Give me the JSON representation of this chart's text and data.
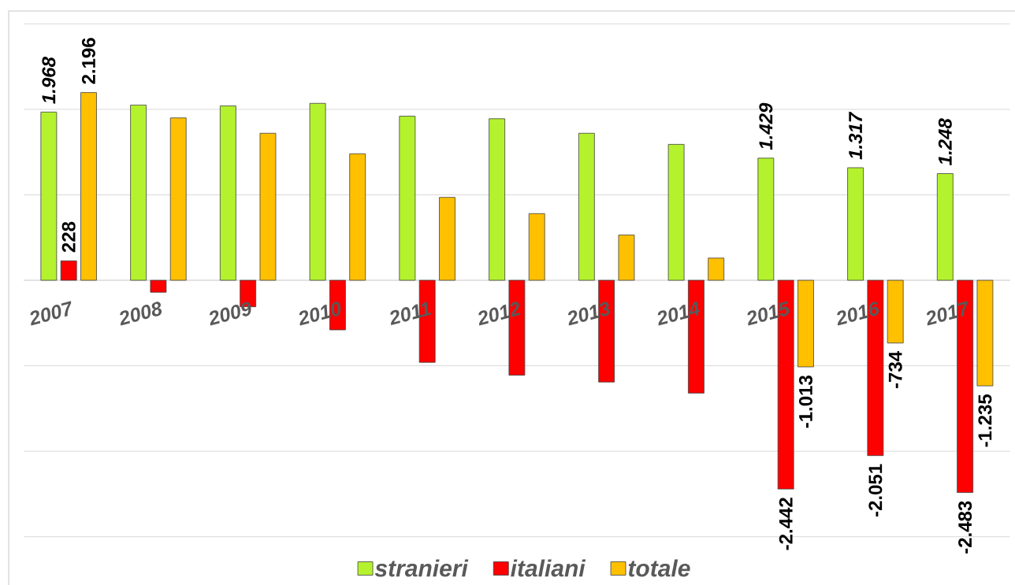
{
  "chart_data": {
    "type": "bar",
    "categories": [
      "2007",
      "2008",
      "2009",
      "2010",
      "2011",
      "2012",
      "2013",
      "2014",
      "2015",
      "2016",
      "2017"
    ],
    "series": [
      {
        "name": "stranieri",
        "color": "#b4f22e",
        "values": [
          1968,
          2050,
          2040,
          2070,
          1920,
          1890,
          1720,
          1590,
          1429,
          1317,
          1248
        ],
        "value_labels": [
          "1.968",
          null,
          null,
          null,
          null,
          null,
          null,
          null,
          "1.429",
          "1.317",
          "1.248"
        ]
      },
      {
        "name": "italiani",
        "color": "#ff0000",
        "values": [
          228,
          -140,
          -310,
          -580,
          -960,
          -1110,
          -1190,
          -1320,
          -2442,
          -2051,
          -2483
        ],
        "value_labels": [
          "228",
          null,
          null,
          null,
          null,
          null,
          null,
          null,
          "-2.442",
          "-2.051",
          "-2.483"
        ]
      },
      {
        "name": "totale",
        "color": "#ffc000",
        "values": [
          2196,
          1900,
          1720,
          1480,
          970,
          780,
          530,
          260,
          -1013,
          -734,
          -1235
        ],
        "value_labels": [
          "2.196",
          null,
          null,
          null,
          null,
          null,
          null,
          null,
          "-1.013",
          "-734",
          "-1.235"
        ]
      }
    ],
    "ylim": [
      -3000,
      3000
    ],
    "yticks": [
      {
        "value": -3000,
        "label": null
      },
      {
        "value": -2000,
        "label": null
      },
      {
        "value": -1000,
        "label": null
      },
      {
        "value": 0,
        "label": null
      },
      {
        "value": 1000,
        "label": null
      },
      {
        "value": 2000,
        "label": null
      },
      {
        "value": 3000,
        "label": null
      }
    ],
    "tick_labels": "x",
    "grid": "y",
    "legend": "bottom"
  }
}
